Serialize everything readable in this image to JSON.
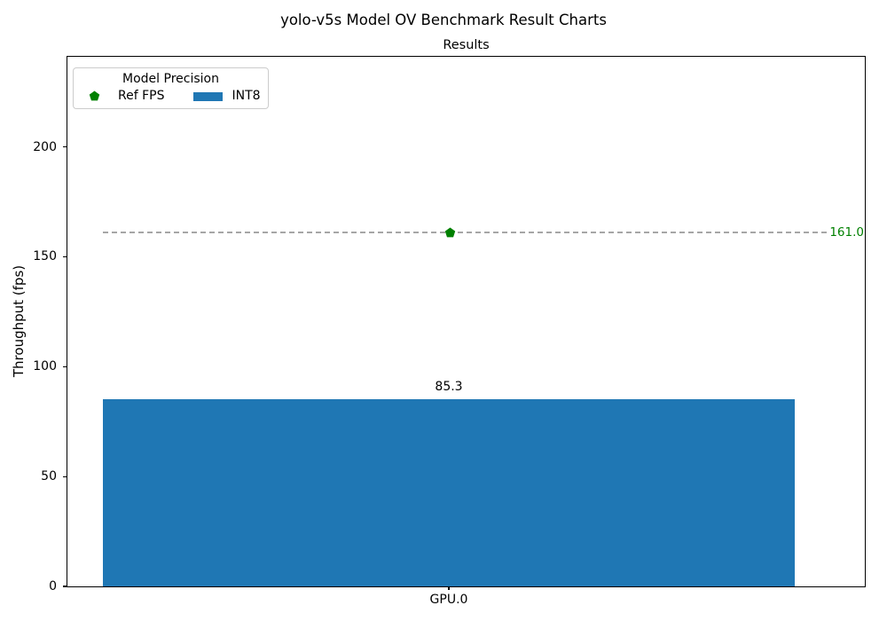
{
  "figure": {
    "suptitle": "yolo-v5s Model OV Benchmark Result Charts"
  },
  "chart_data": {
    "type": "bar",
    "title": "Results",
    "xlabel": "",
    "ylabel": "Throughput (fps)",
    "categories": [
      "GPU.0"
    ],
    "series": [
      {
        "name": "INT8",
        "values": [
          85.3
        ],
        "color": "#1f77b4"
      }
    ],
    "bar_labels": [
      "85.3"
    ],
    "ref_line": {
      "name": "Ref FPS",
      "value": 161.0,
      "label": "161.0",
      "marker": "pentagon",
      "marker_category": "GPU.0",
      "line_color": "#a6a6a6",
      "color": "#008000"
    },
    "ylim": [
      0,
      241
    ],
    "yticks": [
      0,
      50,
      100,
      150,
      200
    ],
    "grid": false,
    "legend": {
      "title": "Model Precision",
      "position": "upper left",
      "entries": [
        {
          "label": "Ref FPS",
          "swatch": "pentagon-marker",
          "color": "#008000"
        },
        {
          "label": "INT8",
          "swatch": "patch",
          "color": "#1f77b4"
        }
      ]
    }
  }
}
